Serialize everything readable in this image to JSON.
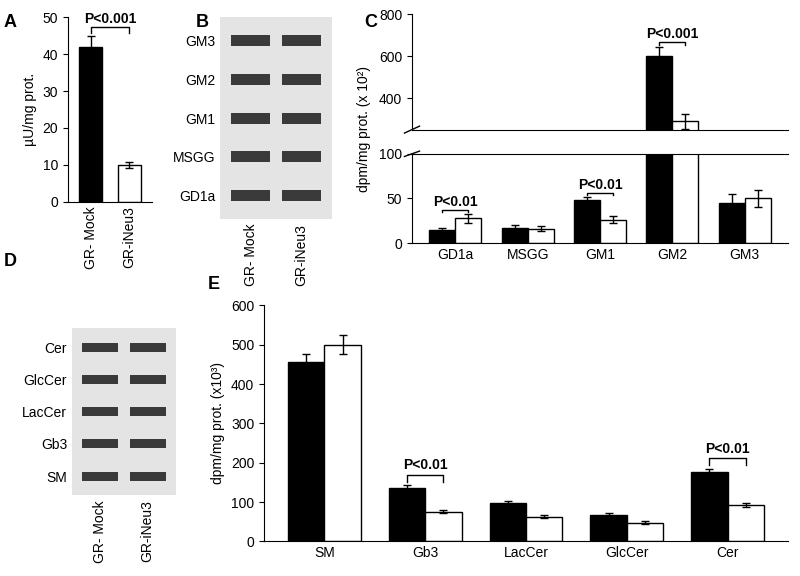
{
  "chart_data": [
    {
      "type": "bar",
      "title": "A",
      "categories": [
        "GR- Mock",
        "GR-iNeu3"
      ],
      "values": [
        42,
        10
      ],
      "errors": [
        3,
        0.8
      ],
      "colors": [
        "#000000",
        "#ffffff"
      ],
      "y_label": "µU/mg prot.",
      "ylim": [
        0,
        50
      ],
      "yticks": [
        0,
        10,
        20,
        30,
        40,
        50
      ],
      "annotations": [
        {
          "text": "P<0.001"
        }
      ]
    },
    {
      "type": "tlc",
      "title": "B",
      "lanes": [
        "GR- Mock",
        "GR-iNeu3"
      ],
      "bands": [
        "GM3",
        "GM2",
        "GM1",
        "MSGG",
        "GD1a"
      ]
    },
    {
      "type": "broken_bar",
      "title": "C",
      "categories": [
        "GD1a",
        "MSGG",
        "GM1",
        "GM2",
        "GM3"
      ],
      "series": [
        {
          "color": "#000000",
          "values": [
            15,
            17,
            48,
            600,
            45
          ],
          "errors": [
            2,
            3,
            4,
            45,
            10
          ]
        },
        {
          "color": "#ffffff",
          "values": [
            28,
            16,
            26,
            290,
            50
          ],
          "errors": [
            5,
            3,
            4,
            35,
            10
          ]
        }
      ],
      "y_label": "dpm/mg prot. (x 10²)",
      "ylim": [
        [
          0,
          100
        ],
        [
          250,
          800
        ]
      ],
      "yticks": [
        [
          0,
          50,
          100
        ],
        [
          400,
          600,
          800
        ]
      ],
      "annotations": [
        {
          "text": "P<0.01",
          "category": "GD1a"
        },
        {
          "text": "P<0.01",
          "category": "GM1"
        },
        {
          "text": "P<0.001",
          "category": "GM2"
        }
      ]
    },
    {
      "type": "tlc",
      "title": "D",
      "lanes": [
        "GR- Mock",
        "GR-iNeu3"
      ],
      "bands": [
        "Cer",
        "GlcCer",
        "LacCer",
        "Gb3",
        "SM"
      ]
    },
    {
      "type": "bar",
      "title": "E",
      "categories": [
        "SM",
        "Gb3",
        "LacCer",
        "GlcCer",
        "Cer"
      ],
      "series": [
        {
          "color": "#000000",
          "values": [
            455,
            137,
            97,
            68,
            177
          ],
          "errors": [
            22,
            6,
            5,
            4,
            8
          ]
        },
        {
          "color": "#ffffff",
          "values": [
            500,
            76,
            63,
            48,
            92
          ],
          "errors": [
            25,
            4,
            3,
            3,
            5
          ]
        }
      ],
      "y_label": "dpm/mg prot. (x10³)",
      "ylim": [
        0,
        600
      ],
      "yticks": [
        0,
        100,
        200,
        300,
        400,
        500,
        600
      ],
      "annotations": [
        {
          "text": "P<0.01",
          "category": "Gb3"
        },
        {
          "text": "P<0.01",
          "category": "Cer"
        }
      ]
    }
  ]
}
